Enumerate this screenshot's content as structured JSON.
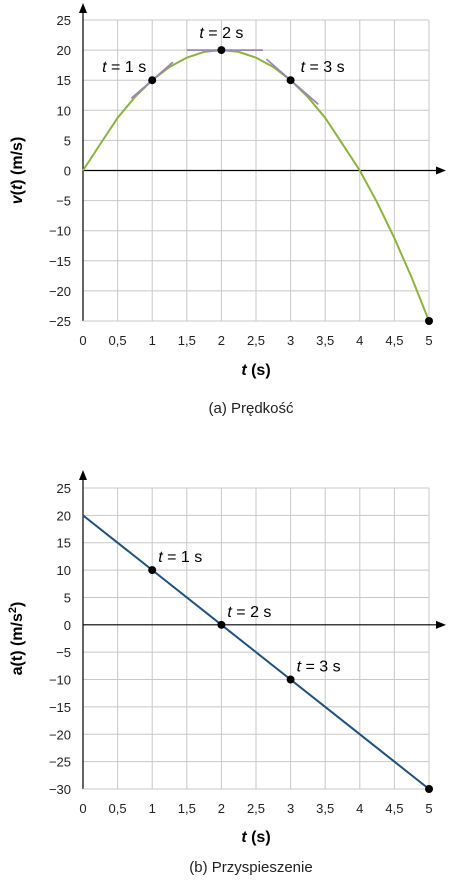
{
  "chart_data": [
    {
      "type": "line",
      "caption": "(a) Prędkość",
      "xlabel": {
        "var": "t",
        "unit": "(s)"
      },
      "ylabel": {
        "fn": "v",
        "var": "t",
        "unit": "(m/s)"
      },
      "xlim": [
        0,
        5
      ],
      "ylim": [
        -25,
        25
      ],
      "xticks": [
        0,
        0.5,
        1,
        1.5,
        2,
        2.5,
        3,
        3.5,
        4,
        4.5,
        5
      ],
      "xtick_labels": [
        "0",
        "0,5",
        "1",
        "1,5",
        "2",
        "2,5",
        "3",
        "3,5",
        "4",
        "4,5",
        "5"
      ],
      "yticks": [
        -25,
        -20,
        -15,
        -10,
        -5,
        0,
        5,
        10,
        15,
        20,
        25
      ],
      "ytick_labels": [
        "−25",
        "−20",
        "−15",
        "−10",
        "−5",
        "0",
        "5",
        "10",
        "15",
        "20",
        "25"
      ],
      "grid": true,
      "curve_color": "#8db23f",
      "tangent_color": "#9b84b8",
      "series": [
        {
          "x": [
            0,
            0.25,
            0.5,
            0.75,
            1,
            1.25,
            1.5,
            1.75,
            2,
            2.25,
            2.5,
            2.75,
            3,
            3.25,
            3.5,
            3.75,
            4,
            4.25,
            4.5,
            4.75,
            5
          ],
          "y": [
            0,
            4.4,
            8.75,
            12.2,
            15,
            17.2,
            18.75,
            19.7,
            20,
            19.7,
            18.75,
            17.2,
            15,
            12.2,
            8.75,
            4.4,
            0,
            -5.3,
            -11.25,
            -17.8,
            -25
          ]
        }
      ],
      "tangents": [
        {
          "x0": 0.7,
          "y0": 12,
          "x1": 1.3,
          "y1": 18
        },
        {
          "x0": 1.5,
          "y0": 20,
          "x1": 2.6,
          "y1": 20
        },
        {
          "x0": 2.65,
          "y0": 18.5,
          "x1": 3.4,
          "y1": 11
        }
      ],
      "points": [
        {
          "x": 1,
          "y": 15,
          "label_var": "t",
          "label_rest": " = 1 s"
        },
        {
          "x": 2,
          "y": 20,
          "label_var": "t",
          "label_rest": " = 2 s"
        },
        {
          "x": 3,
          "y": 15,
          "label_var": "t",
          "label_rest": " = 3 s"
        },
        {
          "x": 5,
          "y": -25
        }
      ]
    },
    {
      "type": "line",
      "caption": "(b) Przyspieszenie",
      "xlabel": {
        "var": "t",
        "unit": "(s)"
      },
      "ylabel": {
        "text": "a(t) (m/s",
        "sup": "2",
        "end": ")"
      },
      "xlim": [
        0,
        5
      ],
      "ylim": [
        -30,
        25
      ],
      "xticks": [
        0,
        0.5,
        1,
        1.5,
        2,
        2.5,
        3,
        3.5,
        4,
        4.5,
        5
      ],
      "xtick_labels": [
        "0",
        "0,5",
        "1",
        "1,5",
        "2",
        "2,5",
        "3",
        "3,5",
        "4",
        "4,5",
        "5"
      ],
      "yticks": [
        -30,
        -25,
        -20,
        -15,
        -10,
        -5,
        0,
        5,
        10,
        15,
        20,
        25
      ],
      "ytick_labels": [
        "−30",
        "−25",
        "−20",
        "−15",
        "−10",
        "−5",
        "0",
        "5",
        "10",
        "15",
        "20",
        "25"
      ],
      "grid": true,
      "curve_color": "#21507d",
      "series": [
        {
          "x": [
            0,
            5
          ],
          "y": [
            20,
            -30
          ]
        }
      ],
      "points": [
        {
          "x": 1,
          "y": 10,
          "label_var": "t",
          "label_rest": " = 1 s"
        },
        {
          "x": 2,
          "y": 0,
          "label_var": "t",
          "label_rest": " = 2 s"
        },
        {
          "x": 3,
          "y": -10,
          "label_var": "t",
          "label_rest": " = 3 s"
        },
        {
          "x": 5,
          "y": -30
        }
      ]
    }
  ]
}
